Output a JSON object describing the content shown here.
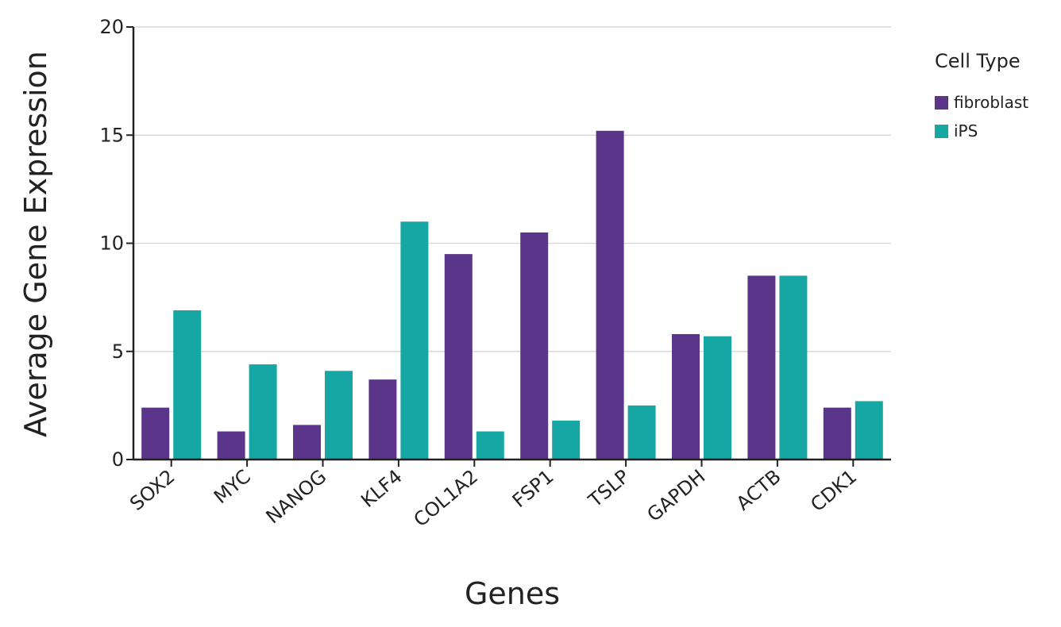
{
  "chart_data": {
    "type": "bar",
    "title": "",
    "xlabel": "Genes",
    "ylabel": "Average Gene Expression",
    "categories": [
      "SOX2",
      "MYC",
      "NANOG",
      "KLF4",
      "COL1A2",
      "FSP1",
      "TSLP",
      "GAPDH",
      "ACTB",
      "CDK1"
    ],
    "series": [
      {
        "name": "fibroblast",
        "color": "#5b3589",
        "values": [
          2.4,
          1.3,
          1.6,
          3.7,
          9.5,
          10.5,
          15.2,
          5.8,
          8.5,
          2.4
        ]
      },
      {
        "name": "iPS",
        "color": "#16a6a3",
        "values": [
          6.9,
          4.4,
          4.1,
          11.0,
          1.3,
          1.8,
          2.5,
          5.7,
          8.5,
          2.7
        ]
      }
    ],
    "ylim": [
      0,
      20
    ],
    "yticks": [
      0,
      5,
      10,
      15,
      20
    ],
    "grid": true,
    "legend": {
      "title": "Cell Type",
      "position": "right-top"
    }
  }
}
